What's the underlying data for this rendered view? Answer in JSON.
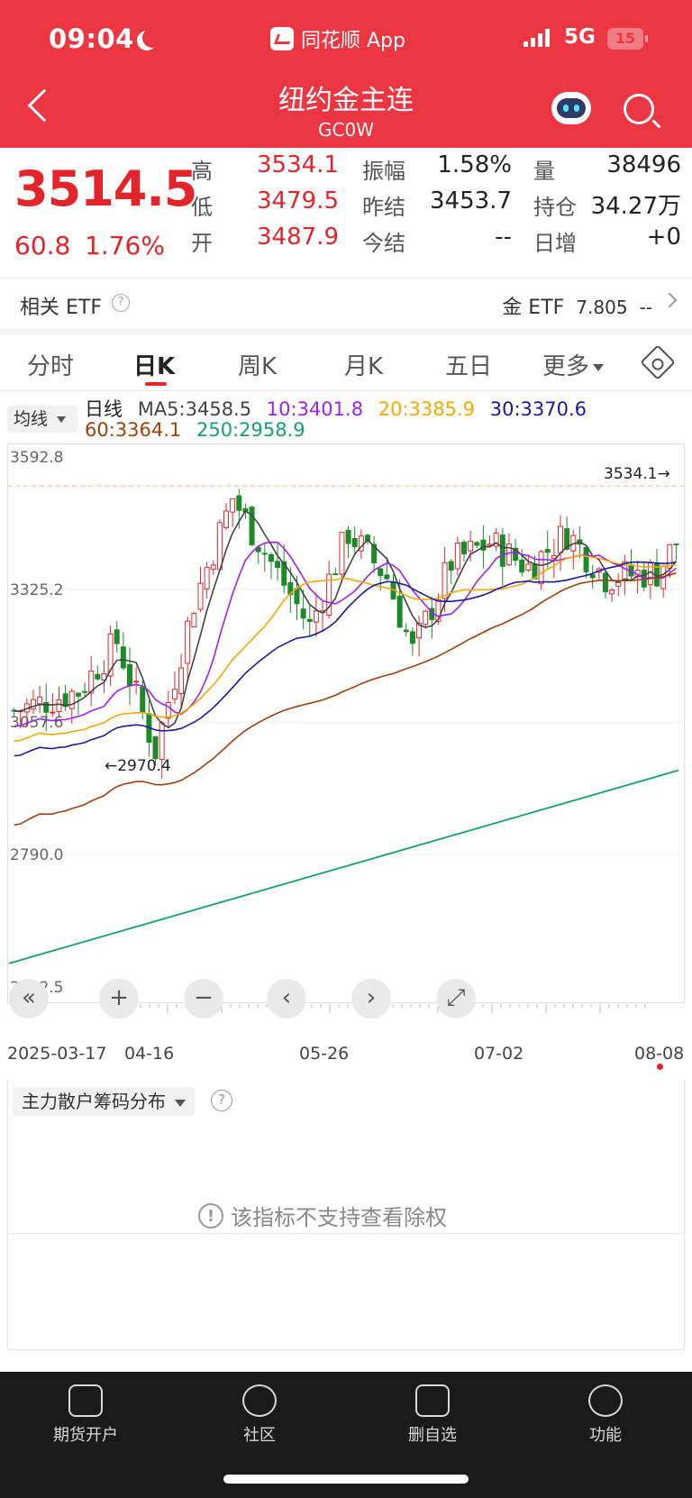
{
  "status": {
    "time": "09:04",
    "app_name": "同花顺 App",
    "network": "5G",
    "battery": "15"
  },
  "header": {
    "title": "纽约金主连",
    "subtitle": "GC0W"
  },
  "quote": {
    "price": "3514.5",
    "change": "60.8",
    "change_pct": "1.76%",
    "fields": [
      {
        "label": "高",
        "value": "3534.1"
      },
      {
        "label": "低",
        "value": "3479.5"
      },
      {
        "label": "开",
        "value": "3487.9"
      },
      {
        "label": "振幅",
        "value": "1.58%"
      },
      {
        "label": "昨结",
        "value": "3453.7"
      },
      {
        "label": "今结",
        "value": "--"
      },
      {
        "label": "量",
        "value": "38496"
      },
      {
        "label": "持仓",
        "value": "34.27万"
      },
      {
        "label": "日增",
        "value": "+0"
      }
    ]
  },
  "etf": {
    "label": "相关 ETF",
    "name": "金 ETF",
    "value": "7.805",
    "change": "--"
  },
  "tabs": [
    "分时",
    "日K",
    "周K",
    "月K",
    "五日",
    "更多"
  ],
  "ma_legend": {
    "selector": "均线",
    "period": "日线",
    "ma5": "MA5:3458.5",
    "ma10": "10:3401.8",
    "ma20": "20:3385.9",
    "ma30": "30:3370.6",
    "ma60": "60:3364.1",
    "ma250": "250:2958.9"
  },
  "colors": {
    "up": "#e3242b",
    "down": "#1d8a2a",
    "ma5": "#444444",
    "ma10": "#a020f0",
    "ma20": "#f2a900",
    "ma30": "#1a1aa0",
    "ma60": "#a0400a",
    "ma250": "#14a070"
  },
  "chart_data": {
    "type": "candlestick",
    "y_ticks": [
      "3592.8",
      "3325.2",
      "3057.6",
      "2790.0",
      "2522.5"
    ],
    "ylim": [
      2522.5,
      3592.8
    ],
    "x_labels": [
      "2025-03-17",
      "04-16",
      "05-26",
      "07-02",
      "08-08"
    ],
    "high_marker": "3534.1→",
    "low_marker": "←2970.4",
    "ref_line": 3534.1
  },
  "controls": [
    "«",
    "+",
    "−",
    "‹",
    "›",
    "⤢"
  ],
  "chip": {
    "selector": "主力散户筹码分布",
    "message": "该指标不支持查看除权"
  },
  "bottom_nav": [
    "期货开户",
    "社区",
    "删自选",
    "功能"
  ]
}
